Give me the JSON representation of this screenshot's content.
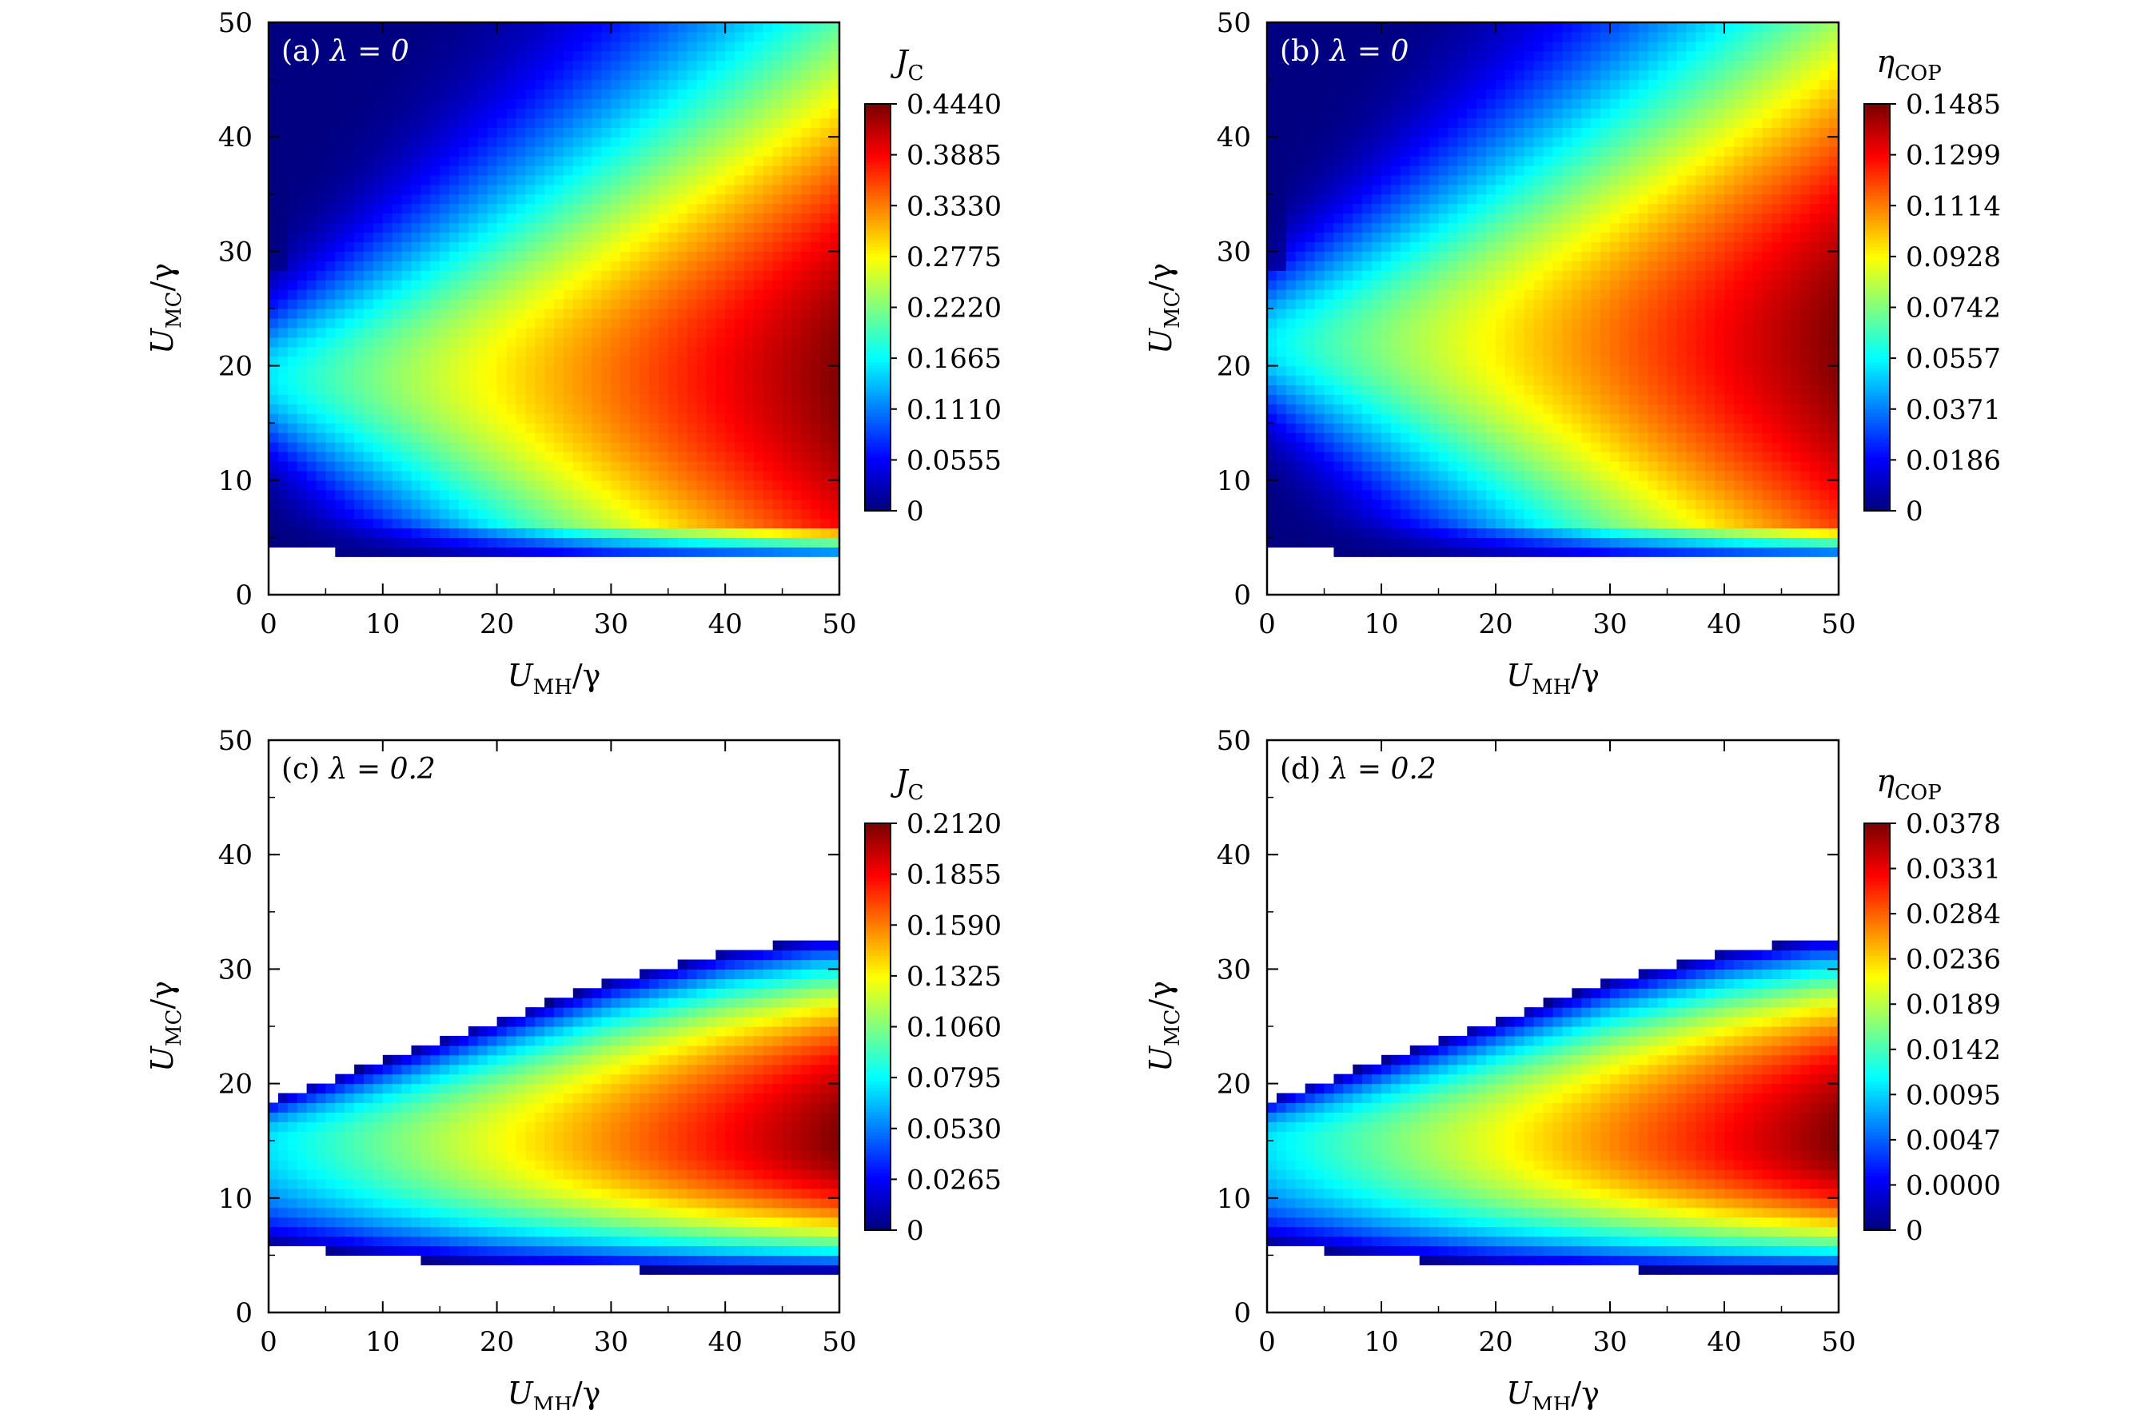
{
  "chart_data": [
    {
      "type": "heatmap",
      "panel_label": "(a)",
      "panel_param": "λ = 0",
      "quantity": "J",
      "quantity_sub": "C",
      "xlabel": "U",
      "xlabel_sub": "MH",
      "xlabel_tail": "/γ",
      "ylabel": "U",
      "ylabel_sub": "MC",
      "ylabel_tail": "/γ",
      "xlim": [
        0,
        50
      ],
      "ylim": [
        0,
        50
      ],
      "xticks": [
        "0",
        "10",
        "20",
        "30",
        "40",
        "50"
      ],
      "yticks": [
        "0",
        "10",
        "20",
        "30",
        "40",
        "50"
      ],
      "colorbar_range": [
        0,
        0.444
      ],
      "colorbar_ticks": [
        "0",
        "0.0555",
        "0.1110",
        "0.1665",
        "0.2220",
        "0.2775",
        "0.3330",
        "0.3885",
        "0.4440"
      ],
      "max_location": [
        47,
        19
      ],
      "lower_boundary": [
        [
          0,
          4.0
        ],
        [
          10,
          3.6
        ],
        [
          20,
          3.3
        ],
        [
          30,
          3.1
        ],
        [
          50,
          3.1
        ]
      ],
      "upper_boundary": [
        [
          0,
          50
        ],
        [
          50,
          50
        ]
      ],
      "colors": {
        "low": "#0000ff",
        "high": "#ff0000"
      }
    },
    {
      "type": "heatmap",
      "panel_label": "(b)",
      "panel_param": "λ = 0",
      "quantity": "η",
      "quantity_sub": "COP",
      "xlabel": "U",
      "xlabel_sub": "MH",
      "xlabel_tail": "/γ",
      "ylabel": "U",
      "ylabel_sub": "MC",
      "ylabel_tail": "/γ",
      "xlim": [
        0,
        50
      ],
      "ylim": [
        0,
        50
      ],
      "xticks": [
        "0",
        "10",
        "20",
        "30",
        "40",
        "50"
      ],
      "yticks": [
        "0",
        "10",
        "20",
        "30",
        "40",
        "50"
      ],
      "colorbar_range": [
        0,
        0.1485
      ],
      "colorbar_ticks": [
        "0",
        "0.0186",
        "0.0371",
        "0.0557",
        "0.0742",
        "0.0928",
        "0.1114",
        "0.1299",
        "0.1485"
      ],
      "max_location": [
        50,
        22
      ],
      "lower_boundary": [
        [
          0,
          4.0
        ],
        [
          10,
          3.6
        ],
        [
          20,
          3.3
        ],
        [
          30,
          3.1
        ],
        [
          50,
          3.1
        ]
      ],
      "upper_boundary": [
        [
          0,
          50
        ],
        [
          50,
          50
        ]
      ],
      "colors": {
        "low": "#0000ff",
        "high": "#ff0000"
      }
    },
    {
      "type": "heatmap",
      "panel_label": "(c)",
      "panel_param": "λ = 0.2",
      "quantity": "J",
      "quantity_sub": "C",
      "xlabel": "U",
      "xlabel_sub": "MH",
      "xlabel_tail": "/γ",
      "ylabel": "U",
      "ylabel_sub": "MC",
      "ylabel_tail": "/γ",
      "xlim": [
        0,
        50
      ],
      "ylim": [
        0,
        50
      ],
      "xticks": [
        "0",
        "10",
        "20",
        "30",
        "40",
        "50"
      ],
      "yticks": [
        "0",
        "10",
        "20",
        "30",
        "40",
        "50"
      ],
      "colorbar_range": [
        0,
        0.212
      ],
      "colorbar_ticks": [
        "0",
        "0.0265",
        "0.0530",
        "0.0795",
        "0.1060",
        "0.1325",
        "0.1590",
        "0.1855",
        "0.2120"
      ],
      "max_location": [
        48,
        15
      ],
      "lower_boundary": [
        [
          0,
          6.0
        ],
        [
          10,
          4.8
        ],
        [
          20,
          4.1
        ],
        [
          30,
          3.8
        ],
        [
          40,
          3.6
        ],
        [
          50,
          3.6
        ]
      ],
      "upper_boundary": [
        [
          0,
          18.5
        ],
        [
          10,
          22.0
        ],
        [
          20,
          25.5
        ],
        [
          30,
          29.0
        ],
        [
          40,
          31.5
        ],
        [
          48,
          32.7
        ],
        [
          50,
          32.7
        ]
      ],
      "colors": {
        "low": "#0000ff",
        "high": "#ff0000"
      }
    },
    {
      "type": "heatmap",
      "panel_label": "(d)",
      "panel_param": "λ = 0.2",
      "quantity": "η",
      "quantity_sub": "COP",
      "xlabel": "U",
      "xlabel_sub": "MH",
      "xlabel_tail": "/γ",
      "ylabel": "U",
      "ylabel_sub": "MC",
      "ylabel_tail": "/γ",
      "xlim": [
        0,
        50
      ],
      "ylim": [
        0,
        50
      ],
      "xticks": [
        "0",
        "10",
        "20",
        "30",
        "40",
        "50"
      ],
      "yticks": [
        "0",
        "10",
        "20",
        "30",
        "40",
        "50"
      ],
      "colorbar_range": [
        0,
        0.0378
      ],
      "colorbar_ticks": [
        "0",
        "0.0000",
        "0.0047",
        "0.0095",
        "0.0142",
        "0.0189",
        "0.0236",
        "0.0284",
        "0.0331",
        "0.0378"
      ],
      "max_location": [
        48,
        15
      ],
      "lower_boundary": [
        [
          0,
          6.0
        ],
        [
          10,
          4.8
        ],
        [
          20,
          4.1
        ],
        [
          30,
          3.8
        ],
        [
          40,
          3.6
        ],
        [
          50,
          3.6
        ]
      ],
      "upper_boundary": [
        [
          0,
          18.5
        ],
        [
          10,
          22.0
        ],
        [
          20,
          25.5
        ],
        [
          30,
          29.0
        ],
        [
          40,
          31.5
        ],
        [
          48,
          32.7
        ],
        [
          50,
          32.7
        ]
      ],
      "colors": {
        "low": "#0000ff",
        "high": "#ff0000"
      }
    }
  ]
}
